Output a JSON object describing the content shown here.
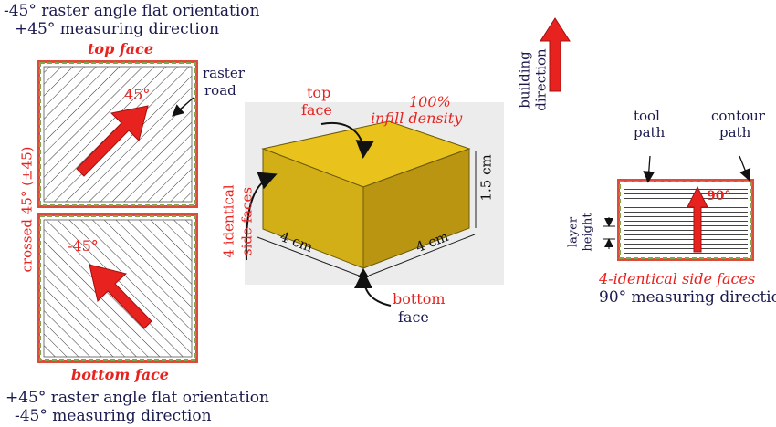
{
  "left_panel": {
    "top_caption_line1": "-45° raster angle flat orientation",
    "top_caption_line2": "+45° measuring direction",
    "top_face": "top face",
    "raster_road_line1": "raster",
    "raster_road_line2": "road",
    "angle_top": "45°",
    "angle_bottom": "-45°",
    "crossed_label": "crossed 45° (±45)",
    "bottom_face": "bottom face",
    "bottom_caption_line1": "+45° raster angle flat orientation",
    "bottom_caption_line2": "-45° measuring direction"
  },
  "center_panel": {
    "top_face_line1": "top",
    "top_face_line2": "face",
    "infill_line1": "100%",
    "infill_line2": "infill density",
    "side_faces_line1": "4 identical",
    "side_faces_line2": "side faces",
    "dim_left": "4 cm",
    "dim_right": "4 cm",
    "dim_height": "1.5 cm",
    "bottom_face_line1": "bottom",
    "bottom_face_line2": "face"
  },
  "building": {
    "line1": "building",
    "line2": "direction"
  },
  "right_panel": {
    "tool_path_line1": "tool",
    "tool_path_line2": "path",
    "contour_path_line1": "contour",
    "contour_path_line2": "path",
    "angle": "90°",
    "layer_height_line1": "layer",
    "layer_height_line2": "height",
    "side_faces_caption": "4-identical side faces",
    "measuring_caption": "90° measuring direction"
  },
  "colors": {
    "navy_text": "#1a1a4e",
    "red_accent": "#e8231f",
    "cube_top": "#e9c21b",
    "cube_side": "#c9a414",
    "contour_red": "#e04a3a",
    "contour_green": "#7fa64a"
  }
}
